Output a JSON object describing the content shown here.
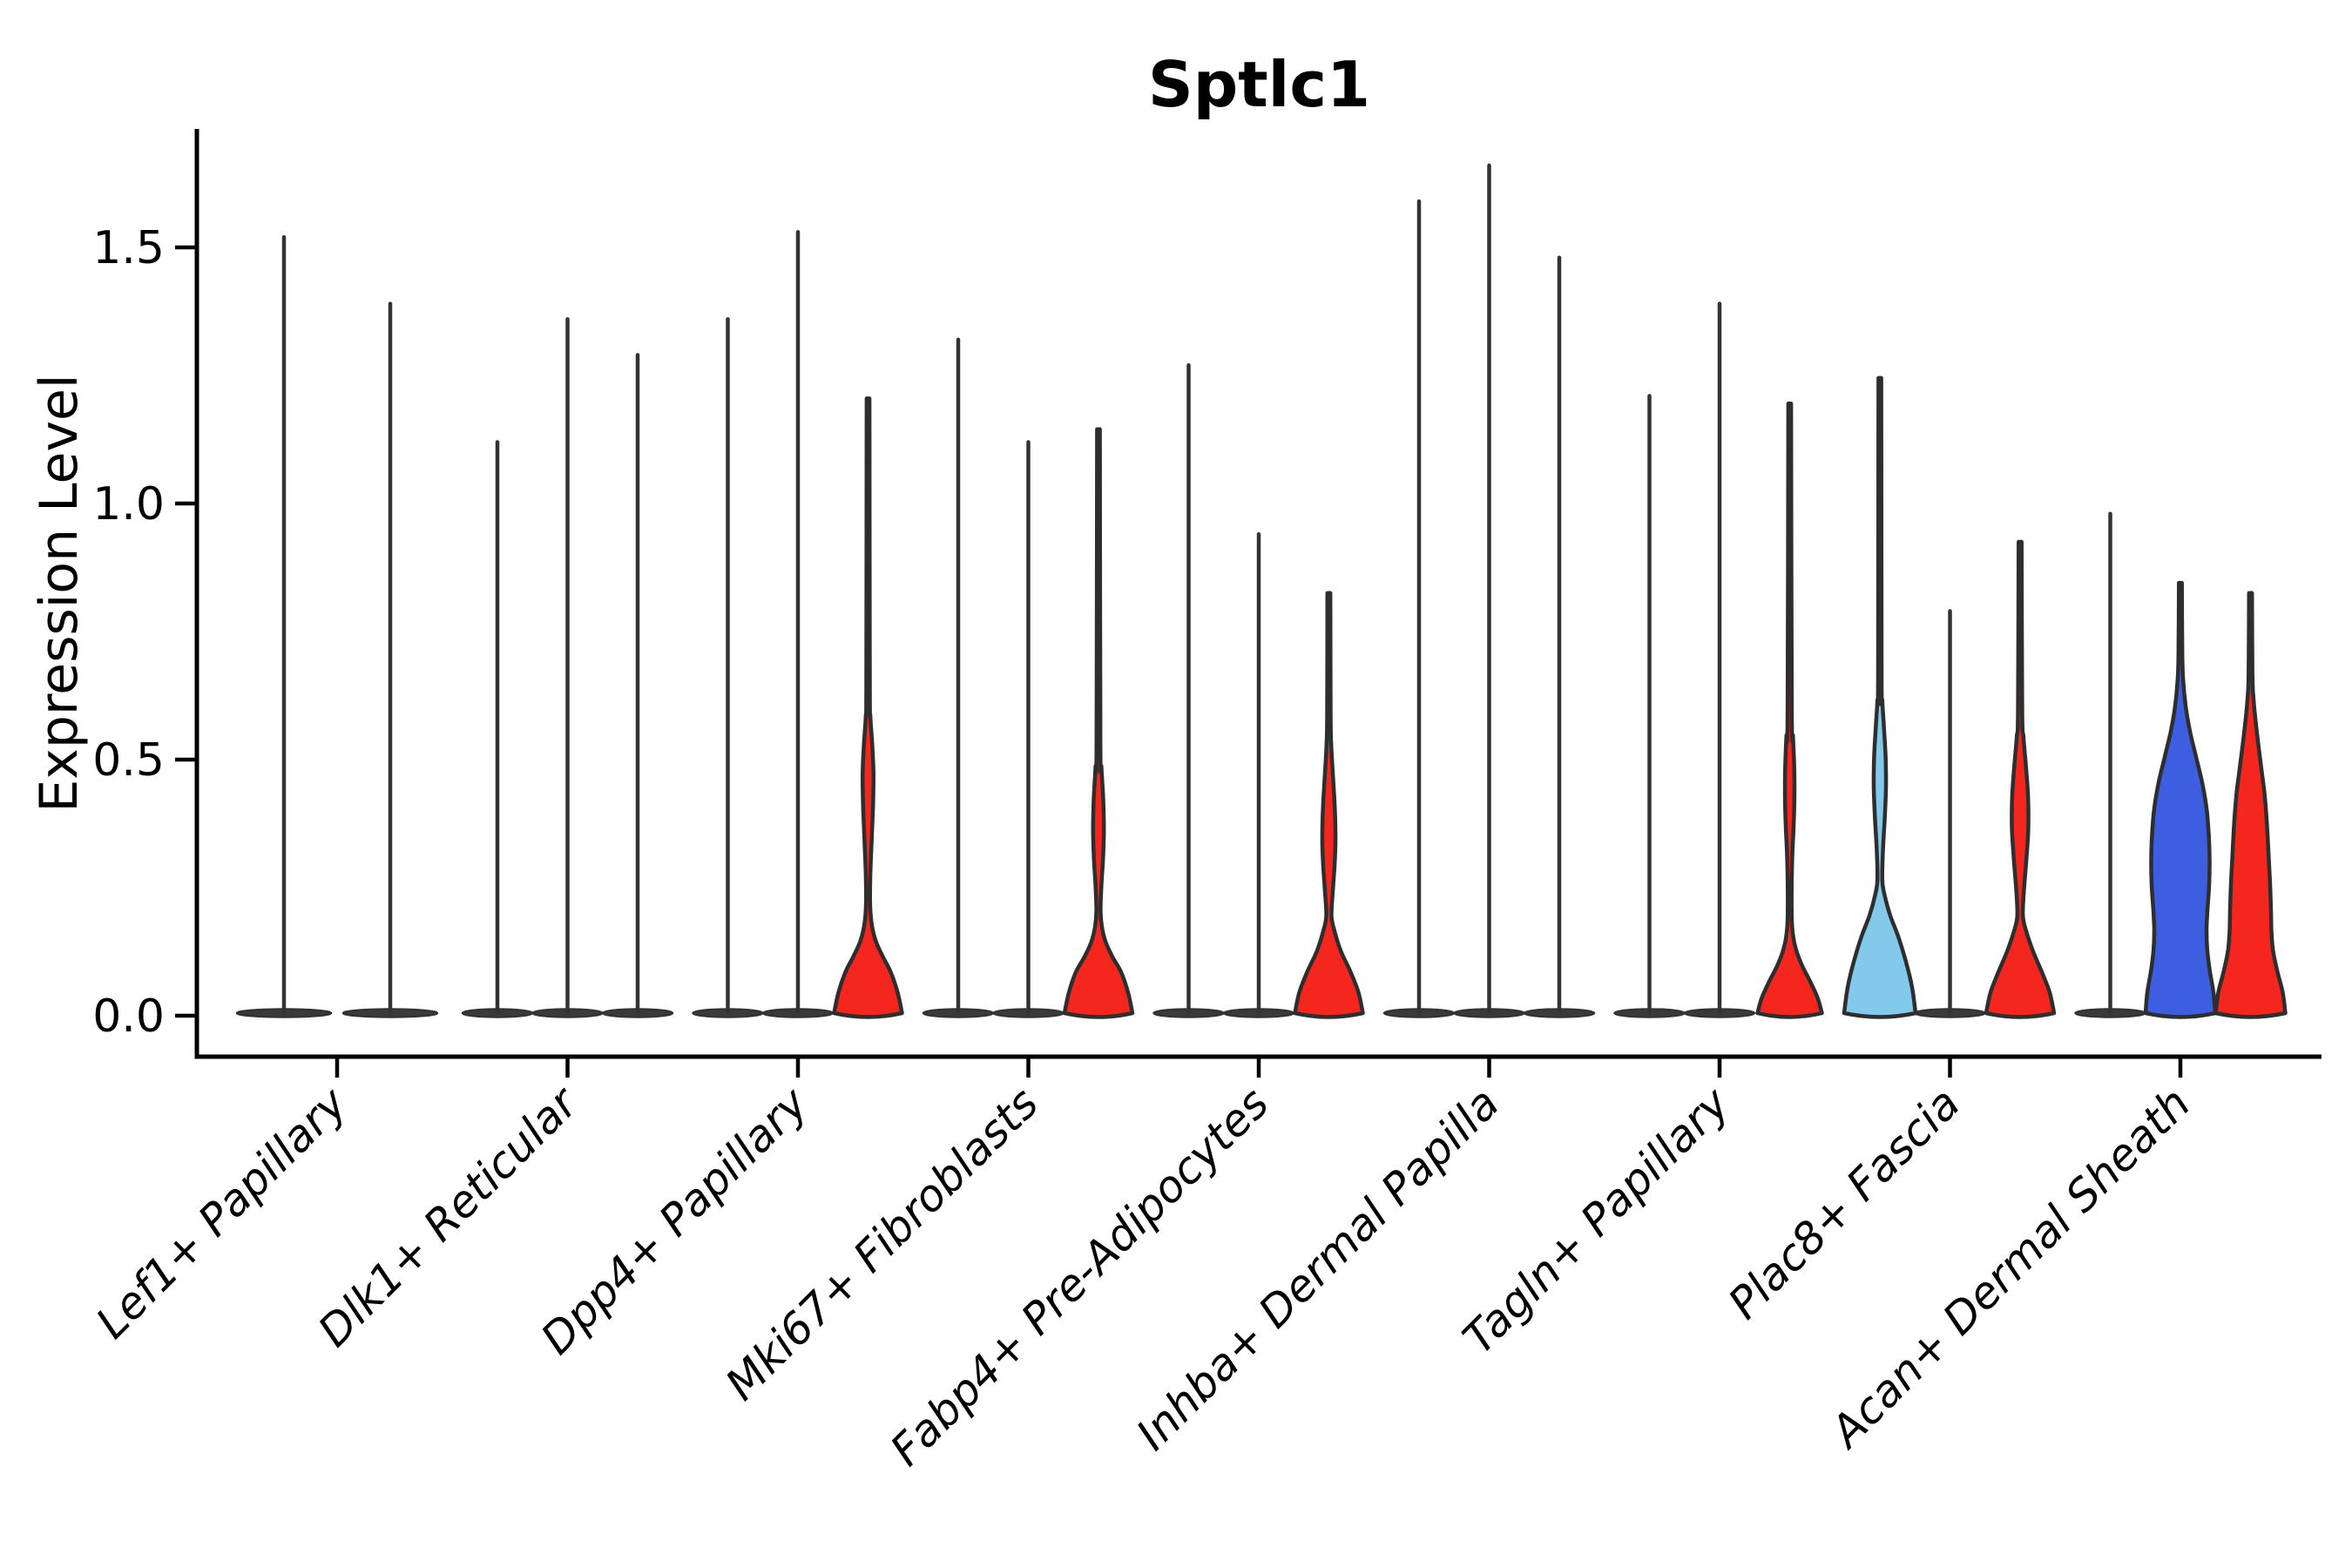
{
  "title": "Sptlc1",
  "colors": {
    "red": "#F4261E",
    "blue": "#3D5EE0",
    "light_blue": "#82C9EB",
    "outline": "#2e2e2e",
    "stem": "#333333",
    "collapsed_base_fill": "#3a3a3a",
    "axis": "#000000"
  },
  "chart_data": {
    "type": "violin",
    "title": "Sptlc1",
    "xlabel": "",
    "ylabel": "Expression Level",
    "ylim": [
      -0.07,
      1.75
    ],
    "yticks": [
      0.0,
      0.5,
      1.0,
      1.5
    ],
    "ytick_labels": [
      "0.0",
      "0.5",
      "1.0",
      "1.5"
    ],
    "legend": "none",
    "grid": false,
    "x_tick_rotation_deg": 45,
    "categories": [
      "Lef1+ Papillary",
      "Dlk1+ Reticular",
      "Dpp4+ Papillary",
      "Mki67+ Fibroblasts",
      "Fabp4+ Pre-Adipocytes",
      "Inhba+ Dermal Papilla",
      "Tagln+ Papillary",
      "Plac8+ Fascia",
      "Acan+ Dermal Sheath"
    ],
    "groups": [
      {
        "category": "Lef1+ Papillary",
        "violins": [
          {
            "max": 1.52,
            "style": "line"
          },
          {
            "max": 1.39,
            "style": "line"
          }
        ]
      },
      {
        "category": "Dlk1+ Reticular",
        "violins": [
          {
            "max": 1.12,
            "style": "line"
          },
          {
            "max": 1.36,
            "style": "line"
          },
          {
            "max": 1.29,
            "style": "line"
          }
        ]
      },
      {
        "category": "Dpp4+ Papillary",
        "violins": [
          {
            "max": 1.36,
            "style": "line"
          },
          {
            "max": 1.53,
            "style": "line"
          },
          {
            "max": 1.2,
            "style": "filled",
            "color_key": "red",
            "profile": [
              [
                0,
                39
              ],
              [
                0.04,
                34
              ],
              [
                0.08,
                26
              ],
              [
                0.11,
                17
              ],
              [
                0.14,
                9
              ],
              [
                0.17,
                4.5
              ],
              [
                0.21,
                2.4
              ],
              [
                0.27,
                2.6
              ],
              [
                0.34,
                4.2
              ],
              [
                0.41,
                5.8
              ],
              [
                0.47,
                6.2
              ],
              [
                0.53,
                4.6
              ],
              [
                0.58,
                2.6
              ],
              [
                0.64,
                2
              ],
              [
                1.2,
                1.6
              ]
            ]
          }
        ]
      },
      {
        "category": "Mki67+ Fibroblasts",
        "violins": [
          {
            "max": 1.32,
            "style": "line"
          },
          {
            "max": 1.12,
            "style": "line"
          },
          {
            "max": 1.14,
            "style": "filled",
            "color_key": "red",
            "profile": [
              [
                0,
                39
              ],
              [
                0.04,
                34
              ],
              [
                0.08,
                26
              ],
              [
                0.11,
                16
              ],
              [
                0.14,
                8
              ],
              [
                0.17,
                3.8
              ],
              [
                0.2,
                2.4
              ],
              [
                0.25,
                3.4
              ],
              [
                0.3,
                5.2
              ],
              [
                0.36,
                6.2
              ],
              [
                0.42,
                5.4
              ],
              [
                0.48,
                3.4
              ],
              [
                0.53,
                2.2
              ],
              [
                1.14,
                1.6
              ]
            ]
          }
        ]
      },
      {
        "category": "Fabp4+ Pre-Adipocytes",
        "violins": [
          {
            "max": 1.27,
            "style": "line"
          },
          {
            "max": 0.94,
            "style": "line"
          },
          {
            "max": 0.82,
            "style": "filled",
            "color_key": "red",
            "profile": [
              [
                0,
                39
              ],
              [
                0.04,
                34
              ],
              [
                0.08,
                25
              ],
              [
                0.12,
                14
              ],
              [
                0.16,
                6.5
              ],
              [
                0.19,
                3
              ],
              [
                0.24,
                4.6
              ],
              [
                0.29,
                6.6
              ],
              [
                0.34,
                7.6
              ],
              [
                0.4,
                6.8
              ],
              [
                0.46,
                4.8
              ],
              [
                0.52,
                2.8
              ],
              [
                0.58,
                2
              ],
              [
                0.82,
                1.7
              ]
            ]
          }
        ]
      },
      {
        "category": "Inhba+ Dermal Papilla",
        "violins": [
          {
            "max": 1.59,
            "style": "line"
          },
          {
            "max": 1.66,
            "style": "line"
          },
          {
            "max": 1.48,
            "style": "line"
          }
        ]
      },
      {
        "category": "Tagln+ Papillary",
        "violins": [
          {
            "max": 1.21,
            "style": "line"
          },
          {
            "max": 1.39,
            "style": "line"
          },
          {
            "max": 1.19,
            "style": "filled",
            "color_key": "red",
            "profile": [
              [
                0,
                37
              ],
              [
                0.03,
                32
              ],
              [
                0.06,
                24
              ],
              [
                0.09,
                15
              ],
              [
                0.12,
                8
              ],
              [
                0.15,
                4
              ],
              [
                0.19,
                2.3
              ],
              [
                0.29,
                2.7
              ],
              [
                0.36,
                4.4
              ],
              [
                0.42,
                5.4
              ],
              [
                0.48,
                5.2
              ],
              [
                0.54,
                3.8
              ],
              [
                0.59,
                2.4
              ],
              [
                1.19,
                1.6
              ]
            ]
          }
        ]
      },
      {
        "category": "Plac8+ Fascia",
        "violins": [
          {
            "max": 1.24,
            "style": "filled",
            "color_key": "light_blue",
            "profile": [
              [
                0,
                41
              ],
              [
                0.05,
                37
              ],
              [
                0.1,
                30
              ],
              [
                0.15,
                21
              ],
              [
                0.19,
                12
              ],
              [
                0.23,
                5.5
              ],
              [
                0.26,
                2.8
              ],
              [
                0.32,
                3.6
              ],
              [
                0.38,
                5.6
              ],
              [
                0.44,
                7
              ],
              [
                0.5,
                6.6
              ],
              [
                0.56,
                4.6
              ],
              [
                0.61,
                2.8
              ],
              [
                0.66,
                2
              ],
              [
                1.24,
                1.6
              ]
            ]
          },
          {
            "max": 0.79,
            "style": "line"
          },
          {
            "max": 0.92,
            "style": "filled",
            "color_key": "red",
            "profile": [
              [
                0,
                39
              ],
              [
                0.04,
                34
              ],
              [
                0.08,
                25
              ],
              [
                0.12,
                15
              ],
              [
                0.16,
                7
              ],
              [
                0.19,
                3.2
              ],
              [
                0.24,
                4.4
              ],
              [
                0.3,
                7.2
              ],
              [
                0.36,
                9.4
              ],
              [
                0.42,
                9.2
              ],
              [
                0.48,
                6.8
              ],
              [
                0.54,
                3.8
              ],
              [
                0.59,
                2.4
              ],
              [
                0.92,
                1.7
              ]
            ]
          }
        ]
      },
      {
        "category": "Acan+ Dermal Sheath",
        "violins": [
          {
            "max": 0.98,
            "style": "line"
          },
          {
            "max": 0.84,
            "style": "filled",
            "color_key": "blue",
            "profile": [
              [
                0,
                40
              ],
              [
                0.04,
                38
              ],
              [
                0.08,
                34
              ],
              [
                0.12,
                31
              ],
              [
                0.16,
                30
              ],
              [
                0.2,
                31
              ],
              [
                0.25,
                33
              ],
              [
                0.3,
                33.5
              ],
              [
                0.35,
                32.5
              ],
              [
                0.4,
                30
              ],
              [
                0.45,
                25
              ],
              [
                0.5,
                18
              ],
              [
                0.55,
                11
              ],
              [
                0.6,
                6
              ],
              [
                0.65,
                3.2
              ],
              [
                0.7,
                2.2
              ],
              [
                0.84,
                1.7
              ]
            ]
          },
          {
            "max": 0.82,
            "style": "filled",
            "color_key": "red",
            "profile": [
              [
                0,
                40
              ],
              [
                0.04,
                37
              ],
              [
                0.08,
                31
              ],
              [
                0.12,
                26
              ],
              [
                0.16,
                24
              ],
              [
                0.2,
                23.5
              ],
              [
                0.25,
                22.5
              ],
              [
                0.3,
                21
              ],
              [
                0.35,
                19.5
              ],
              [
                0.39,
                18
              ],
              [
                0.43,
                16
              ],
              [
                0.47,
                13
              ],
              [
                0.51,
                10
              ],
              [
                0.56,
                6.5
              ],
              [
                0.61,
                3.6
              ],
              [
                0.66,
                2.2
              ],
              [
                0.82,
                1.7
              ]
            ]
          }
        ]
      }
    ]
  }
}
